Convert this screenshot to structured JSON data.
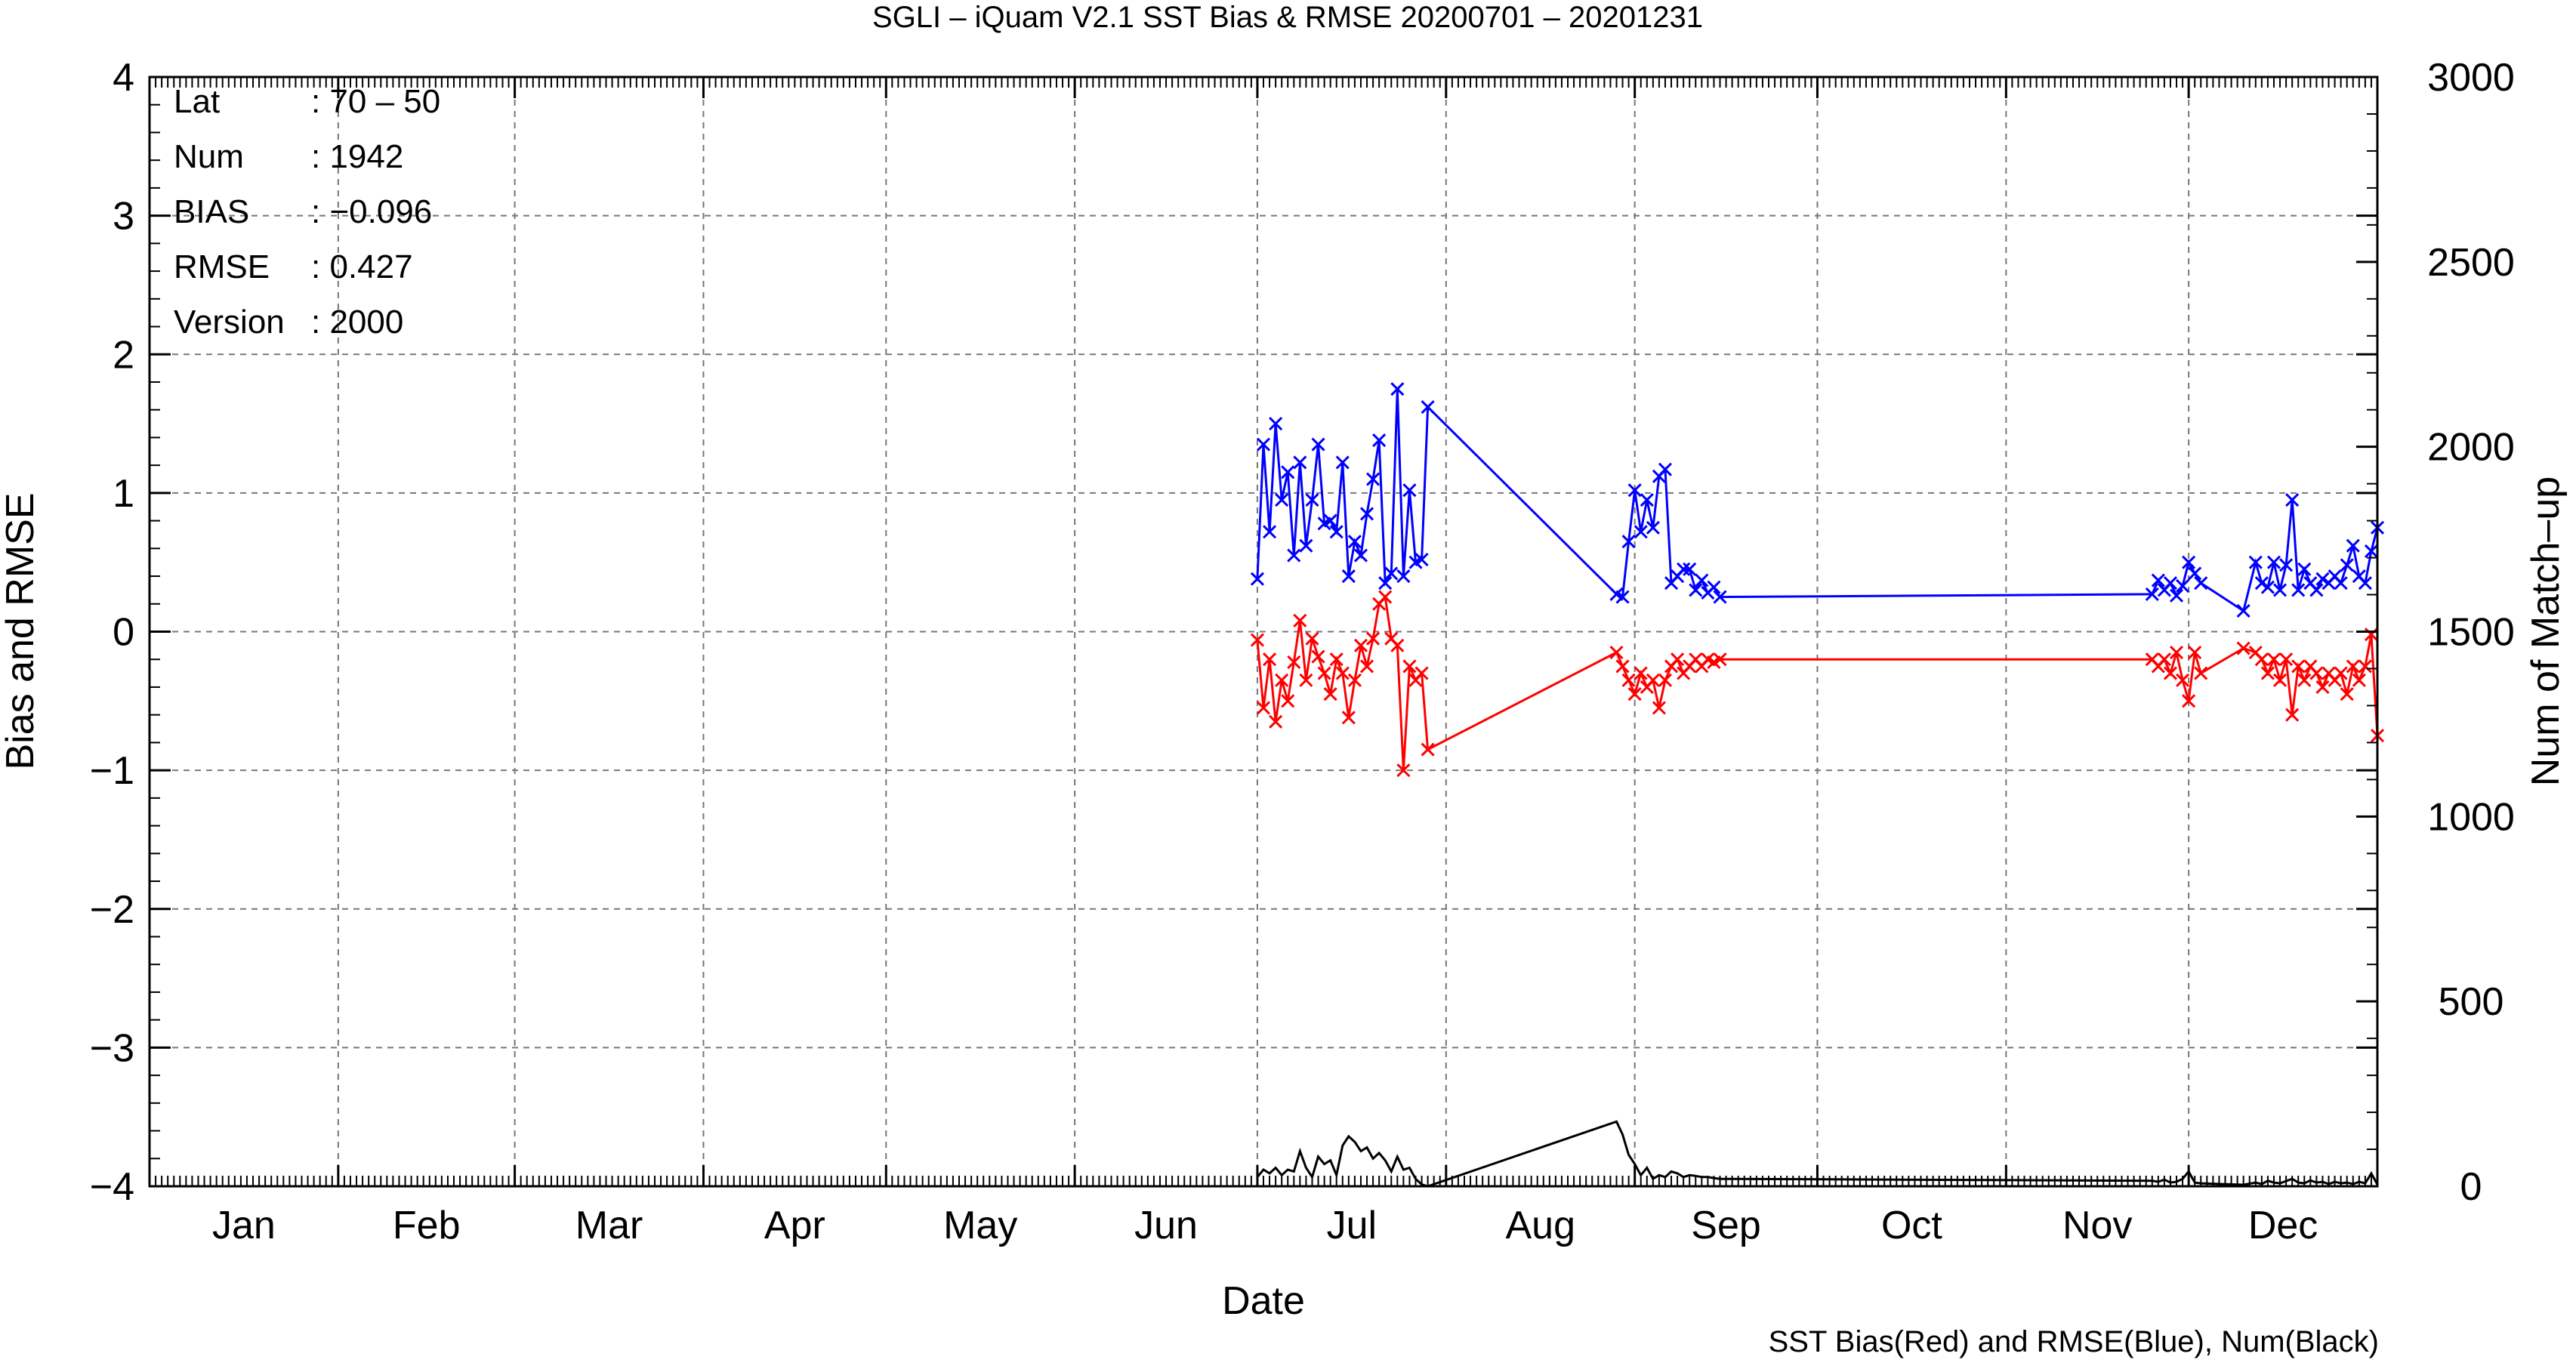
{
  "chart_data": {
    "type": "line",
    "title": "SGLI – iQuam V2.1 SST Bias & RMSE 20200701 – 20201231",
    "xlabel": "Date",
    "ylabel": "Bias and RMSE",
    "y2label": "Num of Match–up",
    "footnote": "SST Bias(Red) and RMSE(Blue), Num(Black)",
    "ylim": [
      -4,
      4
    ],
    "y2lim": [
      0,
      3000
    ],
    "xlim_days": [
      0,
      366
    ],
    "grid": true,
    "yticks": [
      "−4",
      "−3",
      "−2",
      "−1",
      "0",
      "1",
      "2",
      "3",
      "4"
    ],
    "y2ticks": [
      "0",
      "500",
      "1000",
      "1500",
      "2000",
      "2500",
      "3000"
    ],
    "months": [
      "Jan",
      "Feb",
      "Mar",
      "Apr",
      "May",
      "Jun",
      "Jul",
      "Aug",
      "Sep",
      "Oct",
      "Nov",
      "Dec"
    ],
    "stats": [
      {
        "label": "Lat",
        "value": ": 70 – 50"
      },
      {
        "label": "Num",
        "value": ": 1942"
      },
      {
        "label": "BIAS",
        "value": ": −0.096"
      },
      {
        "label": "RMSE",
        "value": ": 0.427"
      },
      {
        "label": "Version",
        "value": ": 2000"
      }
    ],
    "series": [
      {
        "name": "RMSE",
        "color": "#0000ff",
        "axis": "left",
        "marker": "x",
        "points": [
          [
            182,
            0.38
          ],
          [
            183,
            1.35
          ],
          [
            184,
            0.72
          ],
          [
            185,
            1.5
          ],
          [
            186,
            0.95
          ],
          [
            187,
            1.15
          ],
          [
            188,
            0.55
          ],
          [
            189,
            1.22
          ],
          [
            190,
            0.62
          ],
          [
            191,
            0.95
          ],
          [
            192,
            1.35
          ],
          [
            193,
            0.78
          ],
          [
            194,
            0.8
          ],
          [
            195,
            0.72
          ],
          [
            196,
            1.22
          ],
          [
            197,
            0.4
          ],
          [
            198,
            0.65
          ],
          [
            199,
            0.55
          ],
          [
            200,
            0.85
          ],
          [
            201,
            1.1
          ],
          [
            202,
            1.38
          ],
          [
            203,
            0.35
          ],
          [
            204,
            0.42
          ],
          [
            205,
            1.75
          ],
          [
            206,
            0.4
          ],
          [
            207,
            1.02
          ],
          [
            208,
            0.5
          ],
          [
            209,
            0.52
          ],
          [
            210,
            1.62
          ],
          [
            241,
            0.27
          ],
          [
            242,
            0.25
          ],
          [
            243,
            0.65
          ],
          [
            244,
            1.02
          ],
          [
            245,
            0.72
          ],
          [
            246,
            0.95
          ],
          [
            247,
            0.75
          ],
          [
            248,
            1.12
          ],
          [
            249,
            1.17
          ],
          [
            250,
            0.35
          ],
          [
            251,
            0.4
          ],
          [
            252,
            0.45
          ],
          [
            253,
            0.45
          ],
          [
            254,
            0.3
          ],
          [
            255,
            0.37
          ],
          [
            256,
            0.28
          ],
          [
            257,
            0.32
          ],
          [
            258,
            0.25
          ],
          [
            329,
            0.27
          ],
          [
            330,
            0.37
          ],
          [
            331,
            0.3
          ],
          [
            332,
            0.35
          ],
          [
            333,
            0.26
          ],
          [
            334,
            0.33
          ],
          [
            335,
            0.5
          ],
          [
            336,
            0.42
          ],
          [
            337,
            0.35
          ],
          [
            344,
            0.15
          ],
          [
            346,
            0.5
          ],
          [
            347,
            0.35
          ],
          [
            348,
            0.32
          ],
          [
            349,
            0.5
          ],
          [
            350,
            0.3
          ],
          [
            351,
            0.48
          ],
          [
            352,
            0.95
          ],
          [
            353,
            0.3
          ],
          [
            354,
            0.45
          ],
          [
            355,
            0.35
          ],
          [
            356,
            0.3
          ],
          [
            357,
            0.38
          ],
          [
            358,
            0.35
          ],
          [
            359,
            0.4
          ],
          [
            360,
            0.35
          ],
          [
            361,
            0.48
          ],
          [
            362,
            0.62
          ],
          [
            363,
            0.4
          ],
          [
            364,
            0.35
          ],
          [
            365,
            0.58
          ],
          [
            366,
            0.75
          ]
        ]
      },
      {
        "name": "BIAS",
        "color": "#ff0000",
        "axis": "left",
        "marker": "x",
        "points": [
          [
            182,
            -0.06
          ],
          [
            183,
            -0.55
          ],
          [
            184,
            -0.2
          ],
          [
            185,
            -0.65
          ],
          [
            186,
            -0.35
          ],
          [
            187,
            -0.5
          ],
          [
            188,
            -0.22
          ],
          [
            189,
            0.08
          ],
          [
            190,
            -0.35
          ],
          [
            191,
            -0.05
          ],
          [
            192,
            -0.18
          ],
          [
            193,
            -0.3
          ],
          [
            194,
            -0.45
          ],
          [
            195,
            -0.2
          ],
          [
            196,
            -0.3
          ],
          [
            197,
            -0.62
          ],
          [
            198,
            -0.35
          ],
          [
            199,
            -0.1
          ],
          [
            200,
            -0.25
          ],
          [
            201,
            -0.05
          ],
          [
            202,
            0.2
          ],
          [
            203,
            0.25
          ],
          [
            204,
            -0.05
          ],
          [
            205,
            -0.1
          ],
          [
            206,
            -1.0
          ],
          [
            207,
            -0.25
          ],
          [
            208,
            -0.35
          ],
          [
            209,
            -0.3
          ],
          [
            210,
            -0.85
          ],
          [
            241,
            -0.15
          ],
          [
            242,
            -0.25
          ],
          [
            243,
            -0.35
          ],
          [
            244,
            -0.45
          ],
          [
            245,
            -0.3
          ],
          [
            246,
            -0.4
          ],
          [
            247,
            -0.35
          ],
          [
            248,
            -0.55
          ],
          [
            249,
            -0.35
          ],
          [
            250,
            -0.25
          ],
          [
            251,
            -0.2
          ],
          [
            252,
            -0.3
          ],
          [
            253,
            -0.25
          ],
          [
            254,
            -0.2
          ],
          [
            255,
            -0.25
          ],
          [
            256,
            -0.2
          ],
          [
            257,
            -0.22
          ],
          [
            258,
            -0.2
          ],
          [
            329,
            -0.2
          ],
          [
            330,
            -0.25
          ],
          [
            331,
            -0.2
          ],
          [
            332,
            -0.3
          ],
          [
            333,
            -0.15
          ],
          [
            334,
            -0.35
          ],
          [
            335,
            -0.5
          ],
          [
            336,
            -0.15
          ],
          [
            337,
            -0.3
          ],
          [
            344,
            -0.12
          ],
          [
            346,
            -0.15
          ],
          [
            347,
            -0.2
          ],
          [
            348,
            -0.3
          ],
          [
            349,
            -0.2
          ],
          [
            350,
            -0.35
          ],
          [
            351,
            -0.2
          ],
          [
            352,
            -0.6
          ],
          [
            353,
            -0.25
          ],
          [
            354,
            -0.35
          ],
          [
            355,
            -0.25
          ],
          [
            356,
            -0.3
          ],
          [
            357,
            -0.4
          ],
          [
            358,
            -0.3
          ],
          [
            359,
            -0.35
          ],
          [
            360,
            -0.3
          ],
          [
            361,
            -0.45
          ],
          [
            362,
            -0.25
          ],
          [
            363,
            -0.35
          ],
          [
            364,
            -0.25
          ],
          [
            365,
            -0.02
          ],
          [
            366,
            -0.75
          ]
        ]
      },
      {
        "name": "Num",
        "color": "#000000",
        "axis": "right",
        "marker": "none",
        "points": [
          [
            182,
            25
          ],
          [
            183,
            45
          ],
          [
            184,
            35
          ],
          [
            185,
            50
          ],
          [
            186,
            30
          ],
          [
            187,
            45
          ],
          [
            188,
            40
          ],
          [
            189,
            95
          ],
          [
            190,
            50
          ],
          [
            191,
            25
          ],
          [
            192,
            80
          ],
          [
            193,
            60
          ],
          [
            194,
            70
          ],
          [
            195,
            30
          ],
          [
            196,
            110
          ],
          [
            197,
            135
          ],
          [
            198,
            120
          ],
          [
            199,
            95
          ],
          [
            200,
            105
          ],
          [
            201,
            75
          ],
          [
            202,
            90
          ],
          [
            203,
            70
          ],
          [
            204,
            40
          ],
          [
            205,
            80
          ],
          [
            206,
            45
          ],
          [
            207,
            50
          ],
          [
            208,
            20
          ],
          [
            209,
            5
          ],
          [
            210,
            0
          ],
          [
            241,
            175
          ],
          [
            242,
            140
          ],
          [
            243,
            85
          ],
          [
            244,
            60
          ],
          [
            245,
            30
          ],
          [
            246,
            50
          ],
          [
            247,
            20
          ],
          [
            248,
            30
          ],
          [
            249,
            25
          ],
          [
            250,
            40
          ],
          [
            251,
            35
          ],
          [
            252,
            25
          ],
          [
            253,
            30
          ],
          [
            254,
            28
          ],
          [
            255,
            25
          ],
          [
            256,
            25
          ],
          [
            257,
            22
          ],
          [
            258,
            20
          ],
          [
            329,
            15
          ],
          [
            330,
            12
          ],
          [
            331,
            18
          ],
          [
            332,
            10
          ],
          [
            333,
            12
          ],
          [
            334,
            20
          ],
          [
            335,
            40
          ],
          [
            336,
            10
          ],
          [
            337,
            8
          ],
          [
            344,
            4
          ],
          [
            346,
            10
          ],
          [
            347,
            6
          ],
          [
            348,
            15
          ],
          [
            349,
            10
          ],
          [
            350,
            8
          ],
          [
            351,
            14
          ],
          [
            352,
            20
          ],
          [
            353,
            10
          ],
          [
            354,
            8
          ],
          [
            355,
            16
          ],
          [
            356,
            10
          ],
          [
            357,
            12
          ],
          [
            358,
            6
          ],
          [
            359,
            12
          ],
          [
            360,
            8
          ],
          [
            361,
            10
          ],
          [
            362,
            6
          ],
          [
            363,
            12
          ],
          [
            364,
            8
          ],
          [
            365,
            35
          ],
          [
            366,
            5
          ]
        ]
      }
    ]
  }
}
